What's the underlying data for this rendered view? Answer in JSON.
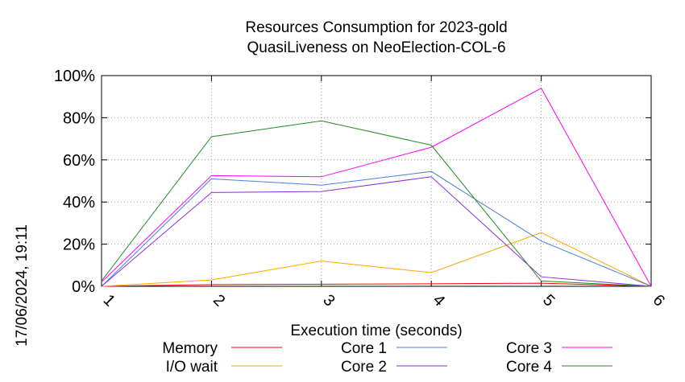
{
  "chart_data": {
    "type": "line",
    "title_line1": "Resources Consumption for 2023-gold",
    "title_line2": "QuasiLiveness on NeoElection-COL-6",
    "xlabel": "Execution time (seconds)",
    "ylabel": "",
    "side_label": "17/06/2024, 19:11",
    "x": [
      1,
      2,
      3,
      4,
      5,
      6
    ],
    "x_tick_labels": [
      "1",
      "2",
      "3",
      "4",
      "5",
      "6"
    ],
    "xlim": [
      1,
      6
    ],
    "ylim": [
      0,
      100
    ],
    "y_ticks": [
      0,
      20,
      40,
      60,
      80,
      100
    ],
    "y_tick_labels": [
      "0%",
      "20%",
      "40%",
      "60%",
      "80%",
      "100%"
    ],
    "grid": true,
    "legend_position": "bottom",
    "series": [
      {
        "name": "Memory",
        "color": "#ff0000",
        "values": [
          0,
          0.8,
          1.0,
          1.2,
          1.5,
          0
        ]
      },
      {
        "name": "I/O wait",
        "color": "#ffa500",
        "values": [
          0,
          3,
          12,
          6.5,
          25.5,
          0
        ]
      },
      {
        "name": "Core 1",
        "color": "#4a7fdc",
        "values": [
          0,
          51,
          48,
          54.5,
          21.5,
          0
        ]
      },
      {
        "name": "Core 2",
        "color": "#8a2be2",
        "values": [
          0,
          44.5,
          45,
          52,
          4.5,
          0
        ]
      },
      {
        "name": "Core 3",
        "color": "#ff00ff",
        "values": [
          2,
          52.5,
          52,
          66,
          94,
          0
        ]
      },
      {
        "name": "Core 4",
        "color": "#228b22",
        "values": [
          2.5,
          71,
          78.5,
          67,
          2.5,
          0
        ]
      }
    ]
  }
}
